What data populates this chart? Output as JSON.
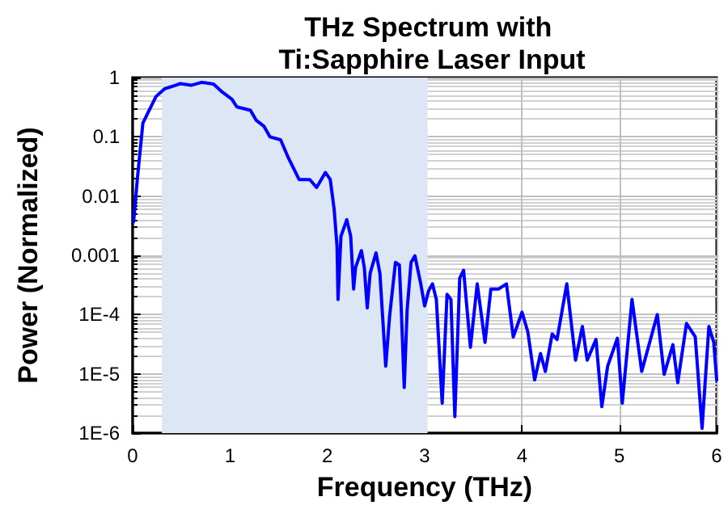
{
  "chart_data": {
    "type": "line",
    "title": "THz Spectrum with Ti:Sapphire Laser Input",
    "xlabel": "Frequency (THz)",
    "ylabel": "Power (Normalized)",
    "x": [
      0.01,
      0.05,
      0.105,
      0.16,
      0.24,
      0.33,
      0.44,
      0.49,
      0.6,
      0.71,
      0.83,
      0.91,
      1.02,
      1.07,
      1.21,
      1.27,
      1.35,
      1.41,
      1.52,
      1.6,
      1.71,
      1.82,
      1.89,
      1.98,
      2.03,
      2.07,
      2.1,
      2.11,
      2.14,
      2.2,
      2.24,
      2.27,
      2.29,
      2.35,
      2.38,
      2.41,
      2.44,
      2.5,
      2.54,
      2.6,
      2.64,
      2.7,
      2.74,
      2.76,
      2.79,
      2.82,
      2.86,
      2.9,
      2.96,
      3.0,
      3.04,
      3.08,
      3.12,
      3.18,
      3.23,
      3.27,
      3.31,
      3.36,
      3.4,
      3.47,
      3.54,
      3.62,
      3.68,
      3.76,
      3.84,
      3.91,
      4.0,
      4.06,
      4.13,
      4.19,
      4.24,
      4.31,
      4.36,
      4.46,
      4.55,
      4.62,
      4.67,
      4.76,
      4.82,
      4.88,
      4.98,
      5.03,
      5.13,
      5.23,
      5.39,
      5.46,
      5.55,
      5.6,
      5.69,
      5.78,
      5.85,
      5.92,
      5.97,
      6.0
    ],
    "series": [
      {
        "color": "#0000ff",
        "values": [
          0.0037,
          0.021,
          0.17,
          0.26,
          0.48,
          0.65,
          0.74,
          0.79,
          0.74,
          0.83,
          0.78,
          0.59,
          0.43,
          0.32,
          0.28,
          0.19,
          0.15,
          0.1,
          0.089,
          0.044,
          0.019,
          0.019,
          0.014,
          0.025,
          0.019,
          0.006,
          0.0014,
          0.00018,
          0.0021,
          0.004,
          0.0021,
          0.00027,
          0.00062,
          0.0012,
          0.00062,
          0.00013,
          0.0005,
          0.0011,
          0.0005,
          1.35e-05,
          9.5e-05,
          0.00076,
          0.00069,
          0.00012,
          5.9e-06,
          0.00012,
          0.00076,
          0.00098,
          0.00033,
          0.00014,
          0.00025,
          0.00033,
          0.00018,
          3.2e-06,
          0.00022,
          0.00018,
          1.9e-06,
          0.00041,
          0.00056,
          2.8e-05,
          0.00033,
          3.4e-05,
          0.00027,
          0.00027,
          0.00033,
          4.2e-05,
          0.00011,
          5.1e-05,
          7.9e-06,
          2.2e-05,
          1.1e-05,
          4.7e-05,
          3.8e-05,
          0.00033,
          1.7e-05,
          6.3e-05,
          1.7e-05,
          3.8e-05,
          2.8e-06,
          1.35e-05,
          4e-05,
          3.2e-06,
          0.00018,
          1.1e-05,
          0.0001,
          9.8e-06,
          3.1e-05,
          7.1e-06,
          7.1e-05,
          4.2e-05,
          1.2e-06,
          6.3e-05,
          3.4e-05,
          7.9e-06
        ]
      }
    ],
    "xlim": [
      0,
      6
    ],
    "xticks": [
      0,
      1,
      2,
      3,
      4,
      5,
      6
    ],
    "ylim": [
      1e-06,
      1
    ],
    "yticks": [
      {
        "value": 1,
        "label": "1"
      },
      {
        "value": 0.1,
        "label": "0.1"
      },
      {
        "value": 0.01,
        "label": "0.01"
      },
      {
        "value": 0.001,
        "label": "0.001"
      },
      {
        "value": 0.0001,
        "label": "1E-4"
      },
      {
        "value": 1e-05,
        "label": "1E-5"
      },
      {
        "value": 1e-06,
        "label": "1E-6"
      }
    ],
    "log": "y",
    "grid": true,
    "marker": "none",
    "line_style": "solid",
    "bands": [
      {
        "axis": "x",
        "from": 0.3,
        "to": 3.03,
        "color": "#dce6f5"
      }
    ]
  }
}
